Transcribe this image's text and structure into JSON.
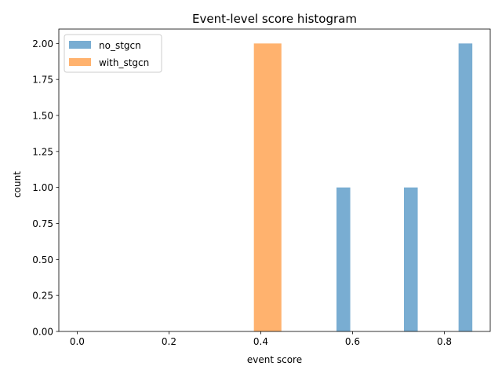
{
  "chart_data": {
    "type": "bar",
    "title": "Event-level score histogram",
    "xlabel": "event score",
    "ylabel": "count",
    "xlim": [
      -0.04,
      0.9
    ],
    "ylim": [
      0,
      2.1
    ],
    "xticks": [
      0.0,
      0.2,
      0.4,
      0.6,
      0.8
    ],
    "xtick_labels": [
      "0.0",
      "0.2",
      "0.4",
      "0.6",
      "0.8"
    ],
    "yticks": [
      0.0,
      0.25,
      0.5,
      0.75,
      1.0,
      1.25,
      1.5,
      1.75,
      2.0
    ],
    "ytick_labels": [
      "0.00",
      "0.25",
      "0.50",
      "0.75",
      "1.00",
      "1.25",
      "1.50",
      "1.75",
      "2.00"
    ],
    "grid": false,
    "legend_position": "top-left",
    "series": [
      {
        "name": "no_stgcn",
        "color": "#1f77b4",
        "opacity": 0.6,
        "bins": [
          {
            "x0": 0.565,
            "x1": 0.595,
            "count": 1
          },
          {
            "x0": 0.712,
            "x1": 0.742,
            "count": 1
          },
          {
            "x0": 0.831,
            "x1": 0.861,
            "count": 2
          }
        ]
      },
      {
        "name": "with_stgcn",
        "color": "#ff7f0e",
        "opacity": 0.6,
        "bins": [
          {
            "x0": 0.385,
            "x1": 0.445,
            "count": 2
          }
        ]
      }
    ]
  }
}
